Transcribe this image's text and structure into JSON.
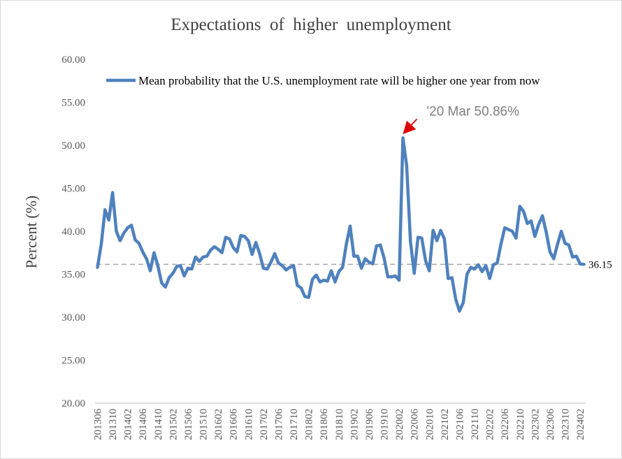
{
  "chart_data": {
    "type": "line",
    "title": "Expectations  of  higher  unemployment",
    "ylabel": "Percent (%)",
    "xlabel": "",
    "ylim": [
      20,
      60
    ],
    "yticks": [
      "20.00",
      "25.00",
      "30.00",
      "35.00",
      "40.00",
      "45.00",
      "50.00",
      "55.00",
      "60.00"
    ],
    "xtick_labels": [
      "201306",
      "201310",
      "201402",
      "201406",
      "201410",
      "201502",
      "201506",
      "201510",
      "201602",
      "201606",
      "201610",
      "201702",
      "201706",
      "201710",
      "201802",
      "201806",
      "201810",
      "201902",
      "201906",
      "201910",
      "202002",
      "202006",
      "202010",
      "202102",
      "202106",
      "202110",
      "202202",
      "202206",
      "202210",
      "202302",
      "202306",
      "202310",
      "202402"
    ],
    "legend": {
      "position": "top",
      "label": "Mean probability that the U.S. unemployment rate will be higher one year from now"
    },
    "grid": false,
    "colors": {
      "series": "#4f81bd",
      "reference": "#a6a6a6",
      "annotation_arrow": "#e00000",
      "annotation_text": "#7f7f7f"
    },
    "reference_line": {
      "value": 36.15,
      "label": "36.15",
      "style": "dashed"
    },
    "annotation": {
      "text": "'20 Mar 50.86%",
      "x": "202003",
      "y": 50.86
    },
    "series": [
      {
        "name": "Mean probability that the U.S. unemployment rate will be higher one year from now",
        "start": "201306",
        "values": [
          35.8,
          38.5,
          42.5,
          41.3,
          44.5,
          40.0,
          38.9,
          39.8,
          40.4,
          40.7,
          39.0,
          38.6,
          37.6,
          36.8,
          35.4,
          37.5,
          36.0,
          34.0,
          33.5,
          34.6,
          35.1,
          35.9,
          36.0,
          34.8,
          35.7,
          35.6,
          37.0,
          36.5,
          37.0,
          37.1,
          37.8,
          38.2,
          37.9,
          37.5,
          39.3,
          39.1,
          38.1,
          37.6,
          39.5,
          39.4,
          38.9,
          37.3,
          38.7,
          37.4,
          35.7,
          35.6,
          36.4,
          37.4,
          36.3,
          36.0,
          35.5,
          35.8,
          36.0,
          33.7,
          33.4,
          32.4,
          32.3,
          34.4,
          34.9,
          34.1,
          34.3,
          34.2,
          35.4,
          34.1,
          35.3,
          35.8,
          38.5,
          40.6,
          37.1,
          37.1,
          35.7,
          36.8,
          36.4,
          36.2,
          38.3,
          38.4,
          36.9,
          34.7,
          34.7,
          34.8,
          34.3,
          50.86,
          47.6,
          38.8,
          35.1,
          39.3,
          39.2,
          36.6,
          35.4,
          40.1,
          38.9,
          40.1,
          39.1,
          34.5,
          34.6,
          32.1,
          30.7,
          31.7,
          35.0,
          35.8,
          35.6,
          36.1,
          35.3,
          36.0,
          34.5,
          36.1,
          36.3,
          38.5,
          40.4,
          40.2,
          40.0,
          39.2,
          42.9,
          42.3,
          40.9,
          41.2,
          39.4,
          40.8,
          41.8,
          39.9,
          37.6,
          36.8,
          38.5,
          40.0,
          38.6,
          38.4,
          37.0,
          37.1,
          36.2,
          36.15
        ]
      }
    ]
  }
}
